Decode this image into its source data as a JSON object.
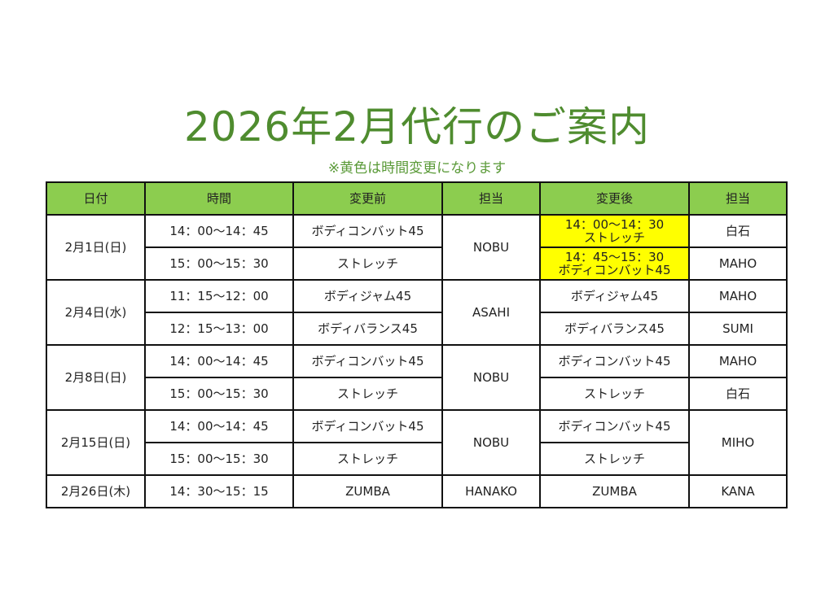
{
  "title": "2026年2月代行のご案内",
  "subtitle": "※黄色は時間変更になります",
  "colors": {
    "header_bg": "#8ccd4f",
    "highlight": "#ffff00",
    "title": "#4f8c2f"
  },
  "table": {
    "headers": [
      "日付",
      "時間",
      "変更前",
      "担当",
      "変更後",
      "担当"
    ],
    "groups": [
      {
        "date": "2月1日(日)",
        "instructor_before": "NOBU",
        "rows": [
          {
            "time": "14：00〜14：45",
            "before": "ボディコンバット45",
            "after": [
              "14：00〜14：30",
              "ストレッチ"
            ],
            "after_highlight": true,
            "instructor_after": "白石"
          },
          {
            "time": "15：00〜15：30",
            "before": "ストレッチ",
            "after": [
              "14：45〜15：30",
              "ボディコンバット45"
            ],
            "after_highlight": true,
            "instructor_after": "MAHO"
          }
        ]
      },
      {
        "date": "2月4日(水)",
        "instructor_before": "ASAHI",
        "rows": [
          {
            "time": "11：15〜12：00",
            "before": "ボディジャム45",
            "after": [
              "ボディジャム45"
            ],
            "after_highlight": false,
            "instructor_after": "MAHO"
          },
          {
            "time": "12：15〜13：00",
            "before": "ボディバランス45",
            "after": [
              "ボディバランス45"
            ],
            "after_highlight": false,
            "instructor_after": "SUMI"
          }
        ]
      },
      {
        "date": "2月8日(日)",
        "instructor_before": "NOBU",
        "rows": [
          {
            "time": "14：00〜14：45",
            "before": "ボディコンバット45",
            "after": [
              "ボディコンバット45"
            ],
            "after_highlight": false,
            "instructor_after": "MAHO"
          },
          {
            "time": "15：00〜15：30",
            "before": "ストレッチ",
            "after": [
              "ストレッチ"
            ],
            "after_highlight": false,
            "instructor_after": "白石"
          }
        ]
      },
      {
        "date": "2月15日(日)",
        "instructor_before": "NOBU",
        "instructor_after_merged": "MIHO",
        "rows": [
          {
            "time": "14：00〜14：45",
            "before": "ボディコンバット45",
            "after": [
              "ボディコンバット45"
            ],
            "after_highlight": false
          },
          {
            "time": "15：00〜15：30",
            "before": "ストレッチ",
            "after": [
              "ストレッチ"
            ],
            "after_highlight": false
          }
        ]
      },
      {
        "date": "2月26日(木)",
        "instructor_before": "HANAKO",
        "rows": [
          {
            "time": "14：30〜15：15",
            "before": "ZUMBA",
            "after": [
              "ZUMBA"
            ],
            "after_highlight": false,
            "instructor_after": "KANA"
          }
        ]
      }
    ]
  }
}
